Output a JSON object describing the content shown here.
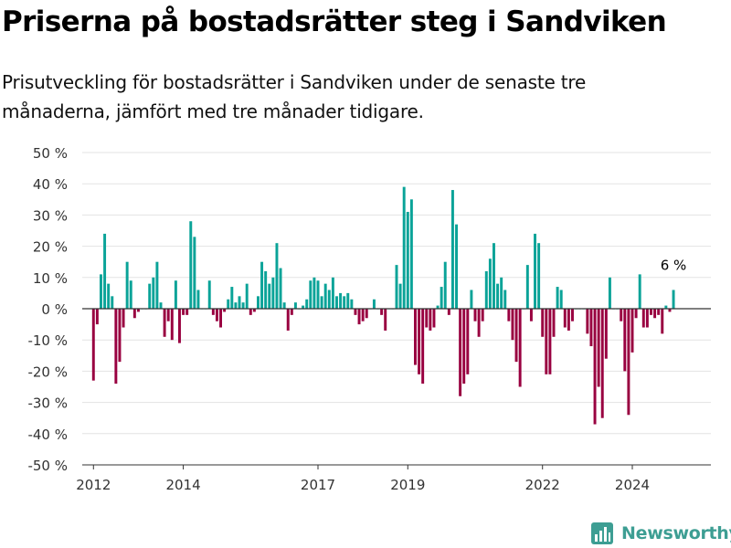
{
  "title": "Priserna på bostadsrätter steg i Sandviken",
  "subtitle": "Prisutveckling för bostadsrätter i Sandviken under de senaste tre månaderna, jämfört med tre månader tidigare.",
  "brand": {
    "name": "Newsworthy"
  },
  "colors": {
    "positive": "#0aa398",
    "negative": "#990040",
    "grid": "#e3e3e3",
    "brand": "#3d9e93"
  },
  "chart_data": {
    "type": "bar",
    "ylim": [
      -50,
      50
    ],
    "yticks": [
      50,
      40,
      30,
      20,
      10,
      0,
      -10,
      -20,
      -30,
      -40,
      -50
    ],
    "y_unit": " %",
    "x_ticks": [
      {
        "label": "2012",
        "x": 2012.0
      },
      {
        "label": "2014",
        "x": 2014.0
      },
      {
        "label": "2017",
        "x": 2017.0
      },
      {
        "label": "2019",
        "x": 2019.0
      },
      {
        "label": "2022",
        "x": 2022.0
      },
      {
        "label": "2024",
        "x": 2024.0
      }
    ],
    "start": "2012-01",
    "values": [
      -23,
      -5,
      11,
      24,
      8,
      4,
      -24,
      -17,
      -6,
      15,
      9,
      -3,
      -1,
      0,
      0,
      8,
      10,
      15,
      2,
      -9,
      -4,
      -10,
      9,
      -11,
      -2,
      -2,
      28,
      23,
      6,
      0,
      0,
      9,
      -2,
      -4,
      -6,
      -1,
      3,
      7,
      2,
      4,
      2,
      8,
      -2,
      -1,
      4,
      15,
      12,
      8,
      10,
      21,
      13,
      2,
      -7,
      -2,
      2,
      0,
      1,
      3,
      9,
      10,
      9,
      4,
      8,
      6,
      10,
      4,
      5,
      4,
      5,
      3,
      -2,
      -5,
      -4,
      -3,
      0,
      3,
      0,
      -2,
      -7,
      0,
      0,
      14,
      8,
      39,
      31,
      35,
      -18,
      -21,
      -24,
      -6,
      -7,
      -6,
      1,
      7,
      15,
      -2,
      38,
      27,
      -28,
      -24,
      -21,
      6,
      -4,
      -9,
      -4,
      12,
      16,
      21,
      8,
      10,
      6,
      -4,
      -10,
      -17,
      -25,
      0,
      14,
      -4,
      24,
      21,
      -9,
      -21,
      -21,
      -9,
      7,
      6,
      -6,
      -7,
      -4,
      0,
      0,
      0,
      -8,
      -12,
      -37,
      -25,
      -35,
      -16,
      10,
      0,
      0,
      -4,
      -20,
      -34,
      -14,
      -3,
      11,
      -6,
      -6,
      -2,
      -3,
      -2,
      -8,
      1,
      -1,
      6
    ],
    "annotation": {
      "text": "6 %",
      "value": 6
    }
  }
}
